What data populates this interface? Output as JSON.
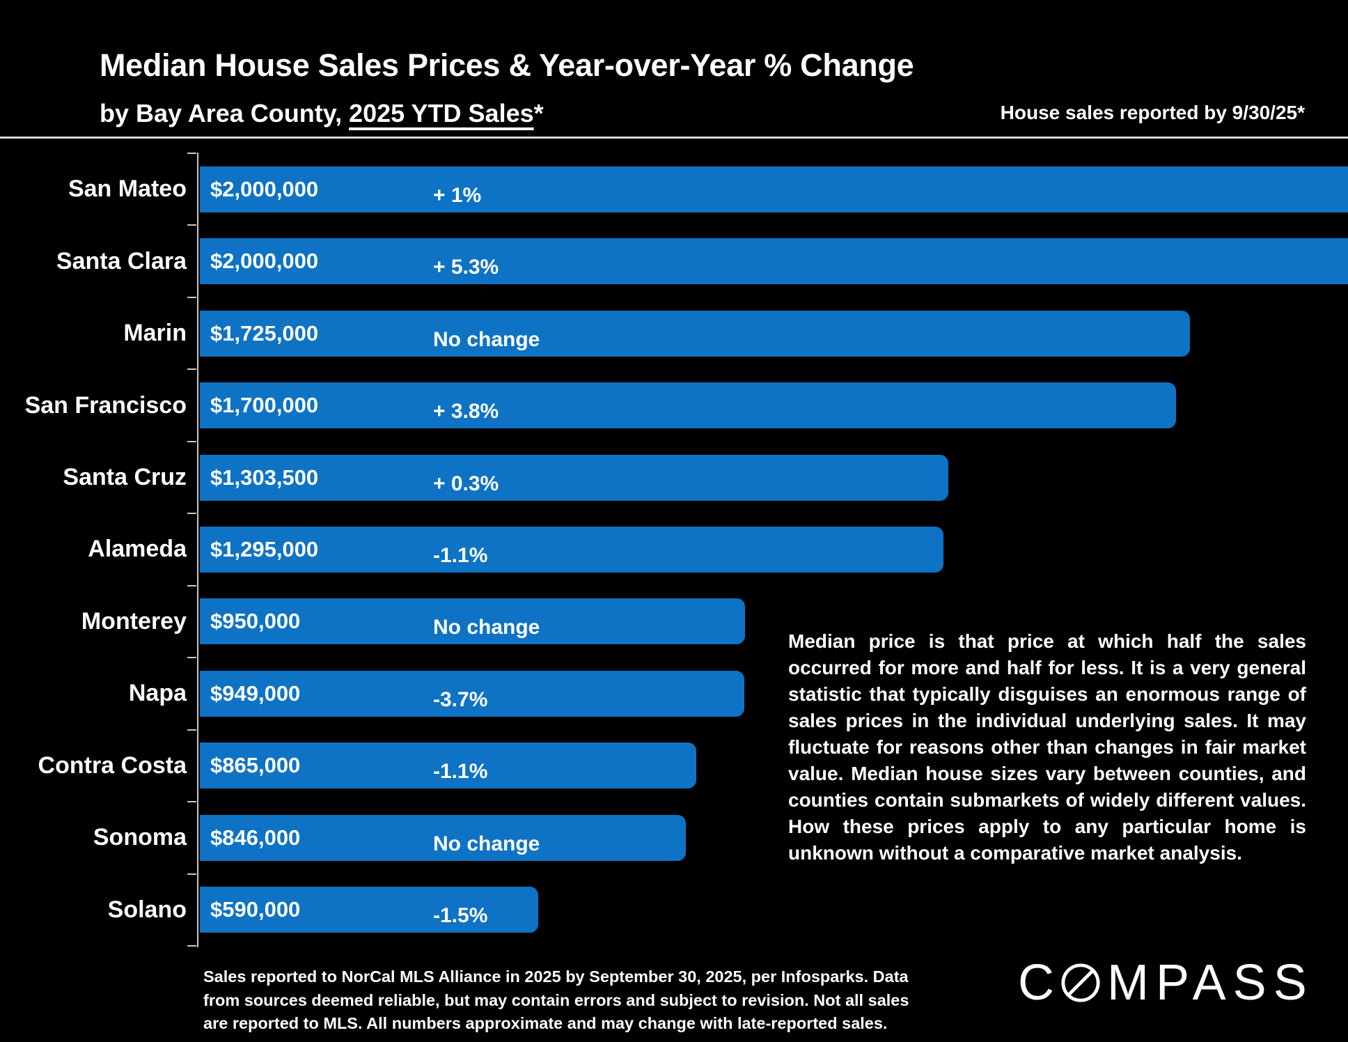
{
  "header": {
    "title": "Median House Sales Prices & Year-over-Year % Change",
    "subtitle_prefix": "by Bay Area County, ",
    "subtitle_underline": "2025 YTD Sales",
    "subtitle_suffix": "*",
    "right_note": "House sales reported by 9/30/25*"
  },
  "chart_data": {
    "type": "bar",
    "orientation": "horizontal",
    "title": "Median House Sales Prices & Year-over-Year % Change by Bay Area County, 2025 YTD Sales",
    "categories": [
      "San Mateo",
      "Santa Clara",
      "Marin",
      "San Francisco",
      "Santa Cruz",
      "Alameda",
      "Monterey",
      "Napa",
      "Contra Costa",
      "Sonoma",
      "Solano"
    ],
    "values": [
      2000000,
      2000000,
      1725000,
      1700000,
      1303500,
      1295000,
      950000,
      949000,
      865000,
      846000,
      590000
    ],
    "value_labels": [
      "$2,000,000",
      "$2,000,000",
      "$1,725,000",
      "$1,700,000",
      "$1,303,500",
      "$1,295,000",
      "$950,000",
      "$949,000",
      "$865,000",
      "$846,000",
      "$590,000"
    ],
    "change_labels": [
      "+ 1%",
      "+ 5.3%",
      "No change",
      "+ 3.8%",
      "+ 0.3%",
      "-1.1%",
      "No change",
      "-3.7%",
      "-1.1%",
      "No change",
      "-1.5%"
    ],
    "xlim": [
      0,
      2000000
    ],
    "xlabel": "",
    "ylabel": "",
    "grid": false,
    "legend_position": "none",
    "bar_color": "#0E73C4"
  },
  "explainer": {
    "text": "Median price is that price at which half the sales occurred for more and half for less. It is a very general statistic that typically disguises an enormous range of sales prices in the individual underlying sales. It may fluctuate for reasons other than changes in fair market value. Median house sizes vary between counties, and counties contain submarkets of widely different values. How these prices apply to any particular home is unknown without a comparative market analysis."
  },
  "footer": {
    "lines": [
      "Sales reported to NorCal MLS Alliance in 2025 by September 30, 2025, per Infosparks. Data",
      "from sources deemed reliable, but may contain errors and subject to revision. Not all sales",
      "are reported to MLS. All numbers approximate and may change with late-reported sales."
    ],
    "logo_text": "COMPASS",
    "logo_prefix": "C",
    "logo_suffix": "MPASS"
  },
  "colors": {
    "background": "#000000",
    "bar": "#0E73C4",
    "text": "#FFFFFF",
    "axis": "#C9C9C9",
    "separator": "#D9D9D9"
  }
}
